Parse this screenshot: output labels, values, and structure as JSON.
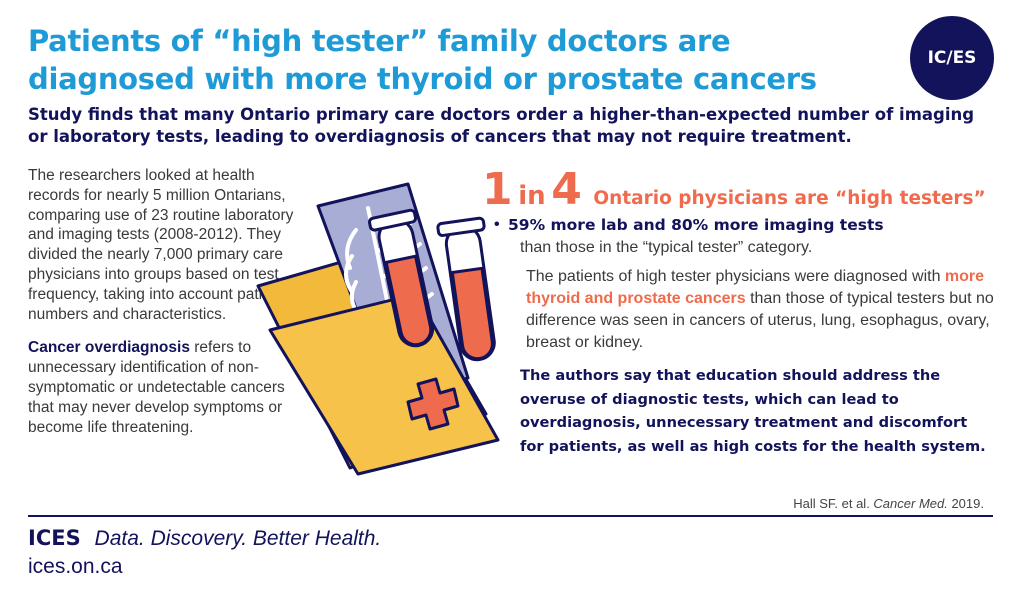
{
  "header": {
    "title": "Patients of “high tester” family doctors are diagnosed with more thyroid or prostate cancers",
    "logo_text": "IC/ES"
  },
  "subtitle": "Study finds that many Ontario primary care doctors order a higher-than-expected number of imaging or laboratory tests, leading to overdiagnosis of cancers that may not require treatment.",
  "left": {
    "paragraph1": "The researchers looked at health records for nearly 5 million Ontarians, comparing use of 23 routine laboratory and imaging tests (2008-2012). They divided the nearly 7,000 primary care physicians into groups based on test frequency, taking into account patient numbers and characteristics.",
    "paragraph2_highlight": "Cancer overdiagnosis",
    "paragraph2_rest": " refers to unnecessary identification of non-symptomatic or undetectable cancers that may never develop symptoms or become life threatening."
  },
  "stat": {
    "num1": "1",
    "in_word": "in",
    "num2": "4",
    "text": "Ontario physicians are “high testers”"
  },
  "bullet": {
    "dot": "•",
    "highlight": "59% more lab and 80% more imaging tests",
    "rest": "than those in the “typical tester” category."
  },
  "paragraph": {
    "part1": "The patients of high tester physicians were diagnosed with ",
    "highlight": "more thyroid and prostate cancers",
    "part2": " than those of typical testers but no difference was seen in cancers of uterus, lung, esophagus, ovary, breast or kidney."
  },
  "authors": "The authors say that education should address the overuse of diagnostic tests, which can lead to overdiagnosis, unnecessary treatment and discomfort for patients, as well as high costs for the health system.",
  "citation": {
    "authors": "Hall SF. et al. ",
    "journal": "Cancer Med.",
    "year": " 2019."
  },
  "footer": {
    "brand": "ICES",
    "tagline": "Data. Discovery. Better Health.",
    "url": "ices.on.ca"
  },
  "icons": {
    "illustration": "medical-folder-xray-test-tubes-icon"
  },
  "colors": {
    "title_blue": "#1E9BD7",
    "navy": "#12135A",
    "coral": "#EF6B4D",
    "folder_yellow": "#F2B93B",
    "xray_lavender": "#9FA6CF"
  }
}
